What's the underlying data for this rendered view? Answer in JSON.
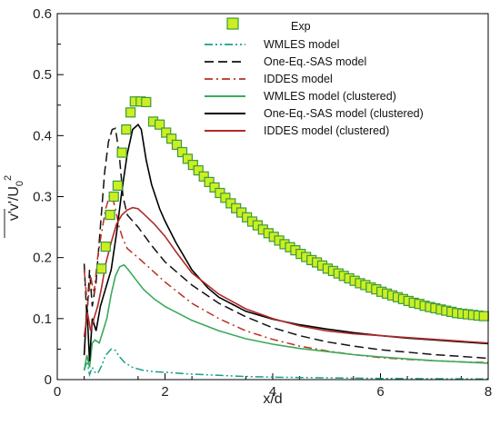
{
  "chart_data": {
    "type": "line",
    "xlabel": "x/d",
    "ylabel": "v'v'/U",
    "ylabel_sub": "0",
    "ylabel_sup": "2",
    "xlim": [
      0,
      8
    ],
    "ylim": [
      0,
      0.6
    ],
    "xticks": [
      "0",
      "2",
      "4",
      "6",
      "8"
    ],
    "yticks": [
      "0",
      "0.1",
      "0.2",
      "0.3",
      "0.4",
      "0.5",
      "0.6"
    ],
    "legend_position": "top-right",
    "series": [
      {
        "name": "Exp",
        "style": "marker-square",
        "color": "#ccee22",
        "edge": "#3c9a3c",
        "points": [
          [
            0.82,
            0.182
          ],
          [
            0.9,
            0.218
          ],
          [
            0.98,
            0.27
          ],
          [
            1.05,
            0.3
          ],
          [
            1.12,
            0.318
          ],
          [
            1.2,
            0.372
          ],
          [
            1.28,
            0.41
          ],
          [
            1.36,
            0.438
          ],
          [
            1.44,
            0.456
          ],
          [
            1.55,
            0.456
          ],
          [
            1.65,
            0.455
          ],
          [
            1.78,
            0.423
          ],
          [
            1.9,
            0.418
          ],
          [
            2.02,
            0.405
          ],
          [
            2.12,
            0.395
          ],
          [
            2.22,
            0.385
          ],
          [
            2.32,
            0.373
          ],
          [
            2.42,
            0.362
          ],
          [
            2.52,
            0.352
          ],
          [
            2.62,
            0.343
          ],
          [
            2.72,
            0.333
          ],
          [
            2.82,
            0.324
          ],
          [
            2.92,
            0.315
          ],
          [
            3.02,
            0.306
          ],
          [
            3.12,
            0.298
          ],
          [
            3.22,
            0.289
          ],
          [
            3.32,
            0.281
          ],
          [
            3.42,
            0.274
          ],
          [
            3.52,
            0.266
          ],
          [
            3.62,
            0.259
          ],
          [
            3.72,
            0.253
          ],
          [
            3.82,
            0.246
          ],
          [
            3.92,
            0.24
          ],
          [
            4.02,
            0.234
          ],
          [
            4.12,
            0.228
          ],
          [
            4.22,
            0.222
          ],
          [
            4.32,
            0.217
          ],
          [
            4.42,
            0.212
          ],
          [
            4.52,
            0.206
          ],
          [
            4.62,
            0.201
          ],
          [
            4.72,
            0.196
          ],
          [
            4.82,
            0.192
          ],
          [
            4.92,
            0.187
          ],
          [
            5.02,
            0.182
          ],
          [
            5.12,
            0.178
          ],
          [
            5.22,
            0.174
          ],
          [
            5.32,
            0.17
          ],
          [
            5.42,
            0.166
          ],
          [
            5.52,
            0.162
          ],
          [
            5.62,
            0.158
          ],
          [
            5.72,
            0.155
          ],
          [
            5.82,
            0.151
          ],
          [
            5.92,
            0.148
          ],
          [
            6.02,
            0.144
          ],
          [
            6.12,
            0.141
          ],
          [
            6.22,
            0.138
          ],
          [
            6.32,
            0.135
          ],
          [
            6.42,
            0.132
          ],
          [
            6.52,
            0.129
          ],
          [
            6.62,
            0.126
          ],
          [
            6.72,
            0.124
          ],
          [
            6.82,
            0.121
          ],
          [
            6.92,
            0.119
          ],
          [
            7.02,
            0.117
          ],
          [
            7.12,
            0.115
          ],
          [
            7.22,
            0.113
          ],
          [
            7.32,
            0.111
          ],
          [
            7.42,
            0.109
          ],
          [
            7.52,
            0.108
          ],
          [
            7.62,
            0.107
          ],
          [
            7.72,
            0.106
          ],
          [
            7.82,
            0.105
          ],
          [
            7.92,
            0.104
          ]
        ]
      },
      {
        "name": "WMLES model",
        "style": "dash-dot-dot",
        "color": "#1a9e8a",
        "points": [
          [
            0.5,
            0.015
          ],
          [
            0.55,
            0.03
          ],
          [
            0.6,
            0.008
          ],
          [
            0.65,
            0.02
          ],
          [
            0.7,
            0.012
          ],
          [
            0.75,
            0.01
          ],
          [
            0.82,
            0.022
          ],
          [
            0.9,
            0.04
          ],
          [
            1.0,
            0.05
          ],
          [
            1.08,
            0.048
          ],
          [
            1.15,
            0.038
          ],
          [
            1.25,
            0.028
          ],
          [
            1.4,
            0.02
          ],
          [
            1.6,
            0.015
          ],
          [
            1.8,
            0.013
          ],
          [
            2.0,
            0.012
          ],
          [
            2.5,
            0.009
          ],
          [
            3.0,
            0.007
          ],
          [
            3.5,
            0.005
          ],
          [
            4.0,
            0.004
          ],
          [
            5.0,
            0.003
          ],
          [
            6.0,
            0.002
          ],
          [
            7.0,
            0.0015
          ],
          [
            8.0,
            0.001
          ]
        ]
      },
      {
        "name": "One-Eq.-SAS model",
        "style": "dash",
        "color": "#111111",
        "points": [
          [
            0.5,
            0.19
          ],
          [
            0.55,
            0.1
          ],
          [
            0.6,
            0.18
          ],
          [
            0.65,
            0.12
          ],
          [
            0.72,
            0.16
          ],
          [
            0.8,
            0.25
          ],
          [
            0.88,
            0.34
          ],
          [
            0.95,
            0.39
          ],
          [
            1.02,
            0.41
          ],
          [
            1.08,
            0.412
          ],
          [
            1.15,
            0.37
          ],
          [
            1.22,
            0.3
          ],
          [
            1.3,
            0.27
          ],
          [
            1.5,
            0.25
          ],
          [
            1.75,
            0.22
          ],
          [
            2.0,
            0.193
          ],
          [
            2.5,
            0.155
          ],
          [
            3.0,
            0.125
          ],
          [
            3.5,
            0.103
          ],
          [
            4.0,
            0.085
          ],
          [
            4.5,
            0.072
          ],
          [
            5.0,
            0.062
          ],
          [
            5.5,
            0.055
          ],
          [
            6.0,
            0.049
          ],
          [
            6.5,
            0.045
          ],
          [
            7.0,
            0.041
          ],
          [
            7.5,
            0.038
          ],
          [
            8.0,
            0.035
          ]
        ]
      },
      {
        "name": "IDDES model",
        "style": "dash-dot",
        "color": "#b83222",
        "points": [
          [
            0.5,
            0.18
          ],
          [
            0.56,
            0.12
          ],
          [
            0.62,
            0.17
          ],
          [
            0.68,
            0.14
          ],
          [
            0.75,
            0.2
          ],
          [
            0.82,
            0.24
          ],
          [
            0.9,
            0.28
          ],
          [
            0.97,
            0.302
          ],
          [
            1.02,
            0.3
          ],
          [
            1.08,
            0.28
          ],
          [
            1.15,
            0.25
          ],
          [
            1.22,
            0.23
          ],
          [
            1.3,
            0.215
          ],
          [
            1.5,
            0.2
          ],
          [
            1.75,
            0.18
          ],
          [
            2.0,
            0.16
          ],
          [
            2.5,
            0.125
          ],
          [
            3.0,
            0.1
          ],
          [
            3.5,
            0.08
          ],
          [
            4.0,
            0.066
          ],
          [
            4.5,
            0.055
          ],
          [
            5.0,
            0.047
          ],
          [
            5.5,
            0.041
          ],
          [
            6.0,
            0.036
          ],
          [
            6.5,
            0.033
          ],
          [
            7.0,
            0.031
          ],
          [
            7.5,
            0.029
          ],
          [
            8.0,
            0.028
          ]
        ]
      },
      {
        "name": "WMLES model (clustered)",
        "style": "solid",
        "color": "#3aaa5a",
        "points": [
          [
            0.5,
            0.015
          ],
          [
            0.55,
            0.04
          ],
          [
            0.6,
            0.02
          ],
          [
            0.65,
            0.06
          ],
          [
            0.7,
            0.065
          ],
          [
            0.78,
            0.06
          ],
          [
            0.85,
            0.08
          ],
          [
            0.92,
            0.1
          ],
          [
            1.0,
            0.14
          ],
          [
            1.08,
            0.17
          ],
          [
            1.16,
            0.185
          ],
          [
            1.24,
            0.188
          ],
          [
            1.32,
            0.18
          ],
          [
            1.45,
            0.165
          ],
          [
            1.6,
            0.148
          ],
          [
            1.8,
            0.132
          ],
          [
            2.0,
            0.12
          ],
          [
            2.5,
            0.097
          ],
          [
            3.0,
            0.08
          ],
          [
            3.5,
            0.067
          ],
          [
            4.0,
            0.058
          ],
          [
            4.5,
            0.051
          ],
          [
            5.0,
            0.046
          ],
          [
            5.5,
            0.041
          ],
          [
            6.0,
            0.037
          ],
          [
            6.5,
            0.034
          ],
          [
            7.0,
            0.031
          ],
          [
            7.5,
            0.029
          ],
          [
            8.0,
            0.027
          ]
        ]
      },
      {
        "name": "One-Eq.-SAS model (clustered)",
        "style": "solid",
        "color": "#000000",
        "points": [
          [
            0.5,
            0.04
          ],
          [
            0.55,
            0.12
          ],
          [
            0.6,
            0.03
          ],
          [
            0.65,
            0.1
          ],
          [
            0.72,
            0.08
          ],
          [
            0.8,
            0.12
          ],
          [
            0.9,
            0.15
          ],
          [
            1.0,
            0.18
          ],
          [
            1.1,
            0.24
          ],
          [
            1.2,
            0.31
          ],
          [
            1.3,
            0.37
          ],
          [
            1.4,
            0.41
          ],
          [
            1.5,
            0.418
          ],
          [
            1.56,
            0.41
          ],
          [
            1.65,
            0.36
          ],
          [
            1.75,
            0.32
          ],
          [
            1.9,
            0.28
          ],
          [
            2.0,
            0.26
          ],
          [
            2.2,
            0.225
          ],
          [
            2.5,
            0.18
          ],
          [
            2.8,
            0.15
          ],
          [
            3.0,
            0.135
          ],
          [
            3.5,
            0.112
          ],
          [
            4.0,
            0.099
          ],
          [
            4.5,
            0.09
          ],
          [
            5.0,
            0.083
          ],
          [
            5.5,
            0.077
          ],
          [
            6.0,
            0.072
          ],
          [
            6.5,
            0.068
          ],
          [
            7.0,
            0.065
          ],
          [
            7.5,
            0.062
          ],
          [
            8.0,
            0.059
          ]
        ]
      },
      {
        "name": "IDDES model (clustered)",
        "style": "solid",
        "color": "#b02a2a",
        "points": [
          [
            0.5,
            0.07
          ],
          [
            0.56,
            0.11
          ],
          [
            0.62,
            0.08
          ],
          [
            0.68,
            0.1
          ],
          [
            0.75,
            0.12
          ],
          [
            0.82,
            0.15
          ],
          [
            0.9,
            0.19
          ],
          [
            1.0,
            0.225
          ],
          [
            1.1,
            0.255
          ],
          [
            1.2,
            0.27
          ],
          [
            1.3,
            0.278
          ],
          [
            1.4,
            0.282
          ],
          [
            1.5,
            0.28
          ],
          [
            1.6,
            0.272
          ],
          [
            1.8,
            0.255
          ],
          [
            2.0,
            0.235
          ],
          [
            2.2,
            0.21
          ],
          [
            2.5,
            0.175
          ],
          [
            3.0,
            0.14
          ],
          [
            3.5,
            0.116
          ],
          [
            4.0,
            0.1
          ],
          [
            4.5,
            0.088
          ],
          [
            5.0,
            0.08
          ],
          [
            5.5,
            0.075
          ],
          [
            6.0,
            0.072
          ],
          [
            6.5,
            0.069
          ],
          [
            7.0,
            0.066
          ],
          [
            7.5,
            0.063
          ],
          [
            8.0,
            0.06
          ]
        ]
      }
    ]
  }
}
